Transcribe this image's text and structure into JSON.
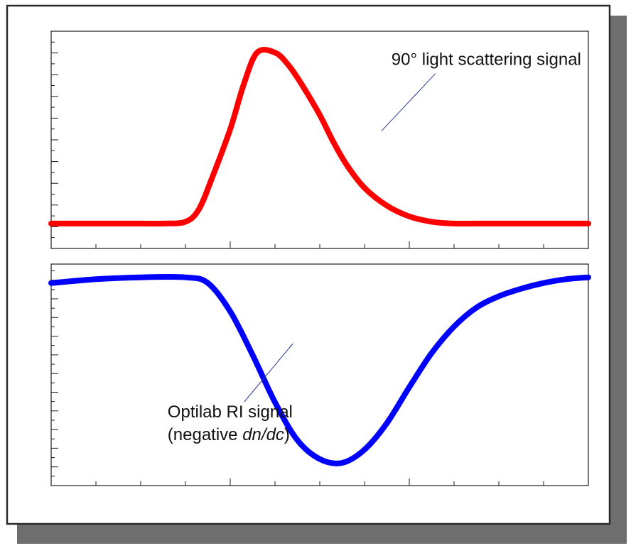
{
  "chart_data": [
    {
      "type": "line",
      "series": [
        {
          "color": "#ff0000",
          "x": [
            0,
            0.5,
            1,
            1.5,
            2,
            2.5,
            3,
            3.3,
            3.6,
            4,
            4.3,
            4.6,
            5,
            5.3,
            5.6,
            6,
            6.3,
            6.6,
            7,
            7.5,
            8,
            8.5,
            9,
            9.5,
            10,
            11,
            12
          ],
          "values": [
            0.04,
            0.04,
            0.04,
            0.04,
            0.04,
            0.04,
            0.05,
            0.12,
            0.3,
            0.57,
            0.82,
            1.0,
            1.0,
            0.93,
            0.82,
            0.65,
            0.5,
            0.37,
            0.24,
            0.14,
            0.08,
            0.05,
            0.04,
            0.04,
            0.04,
            0.04,
            0.04
          ]
        }
      ],
      "annotations": [
        {
          "text": "90° light scattering signal",
          "x": 7.6,
          "y": 0.93,
          "point_x": 7.38,
          "point_y": 0.56
        }
      ],
      "xlim": [
        0,
        12
      ],
      "ylim": [
        -0.1,
        1.12
      ],
      "grid": false
    },
    {
      "type": "line",
      "series": [
        {
          "color": "#0000ff",
          "x": [
            0,
            1,
            2,
            3,
            3.5,
            4,
            4.5,
            5,
            5.5,
            6,
            6.5,
            7,
            7.5,
            8,
            8.5,
            9,
            9.5,
            10,
            10.5,
            11,
            11.5,
            12
          ],
          "values": [
            -0.05,
            -0.03,
            -0.02,
            -0.02,
            -0.05,
            -0.2,
            -0.43,
            -0.68,
            -0.88,
            -0.98,
            -1.0,
            -0.93,
            -0.79,
            -0.6,
            -0.42,
            -0.28,
            -0.18,
            -0.12,
            -0.08,
            -0.05,
            -0.03,
            -0.02
          ]
        }
      ],
      "annotations": [
        {
          "text": "Optilab RI signal",
          "text2_prefix": "(negative ",
          "text2_italic": "dn/dc",
          "text2_suffix": ")",
          "x": 2.6,
          "y": -0.76,
          "point_x": 5.4,
          "point_y": -0.37
        }
      ],
      "xlim": [
        0,
        12
      ],
      "ylim": [
        -1.12,
        0.05
      ],
      "grid": false
    }
  ]
}
